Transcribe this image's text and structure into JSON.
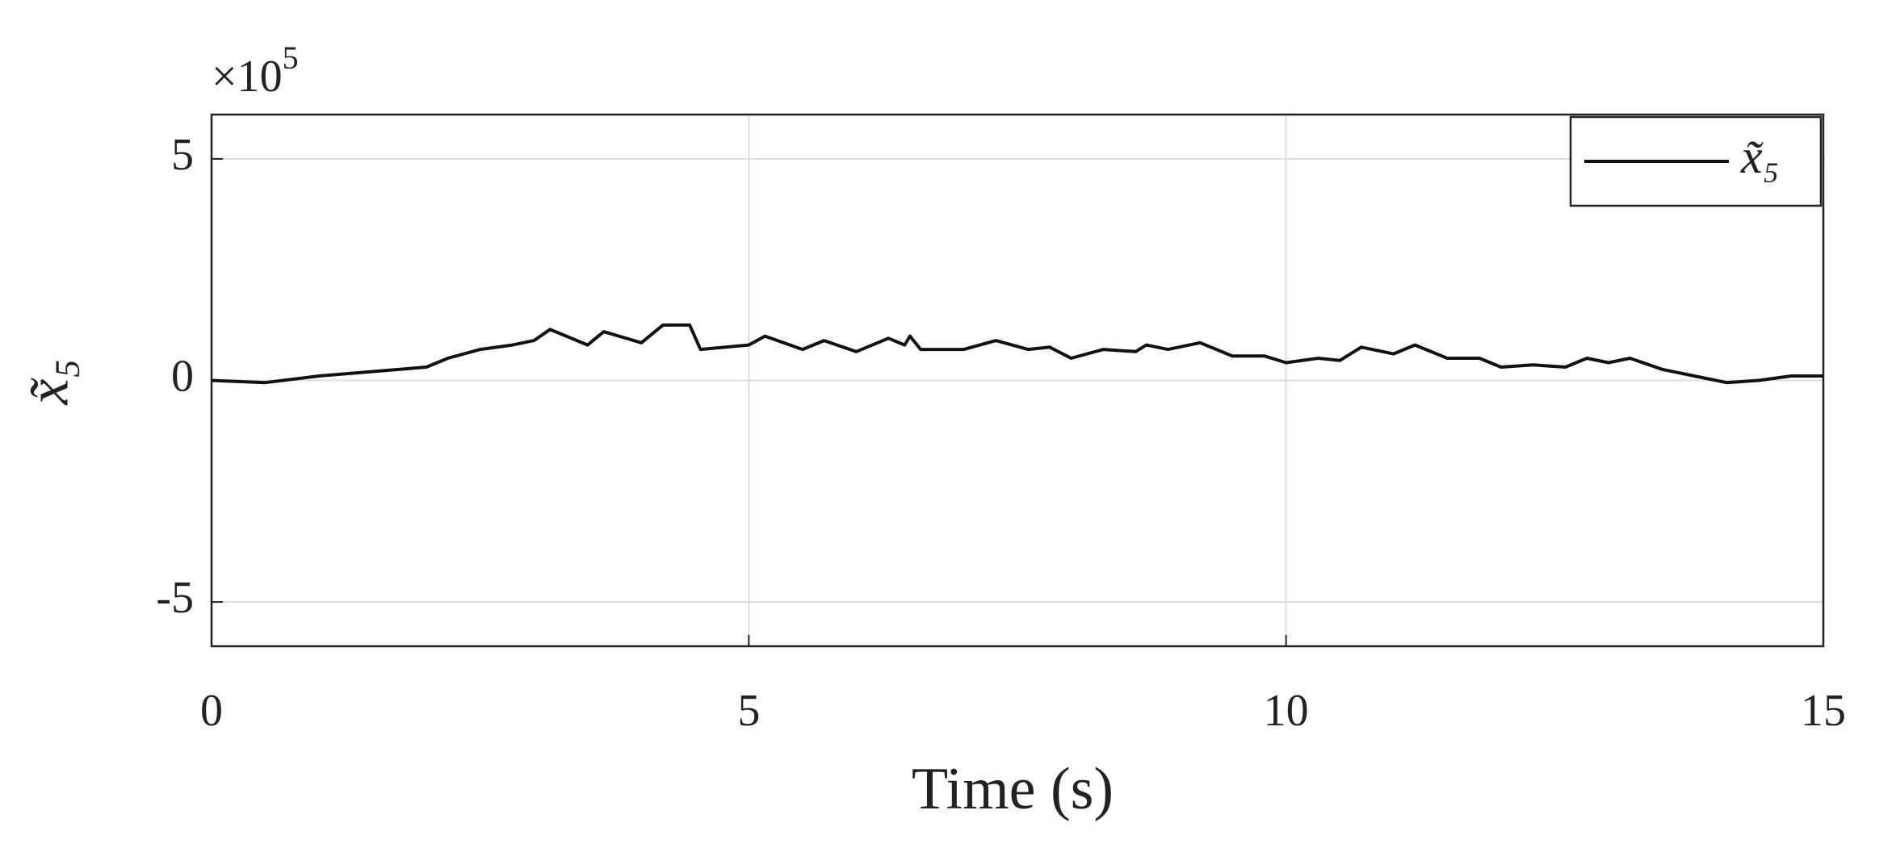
{
  "chart_data": {
    "type": "line",
    "xlabel": "Time (s)",
    "ylabel": "x̃₅",
    "y_multiplier": {
      "base": "×10",
      "exponent": "5"
    },
    "xlim": [
      0,
      15
    ],
    "xticks": [
      0,
      5,
      10,
      15
    ],
    "ylim": [
      -6,
      6
    ],
    "yticks": [
      -5,
      0,
      5
    ],
    "grid": true,
    "legend": "top-right",
    "x": [
      0,
      0.5,
      1,
      1.5,
      2,
      2.2,
      2.5,
      2.8,
      3.0,
      3.15,
      3.5,
      3.65,
      4.0,
      4.2,
      4.45,
      4.55,
      5.0,
      5.15,
      5.5,
      5.7,
      6.0,
      6.3,
      6.45,
      6.5,
      6.6,
      7.0,
      7.3,
      7.6,
      7.8,
      8.0,
      8.3,
      8.6,
      8.7,
      8.9,
      9.2,
      9.5,
      9.8,
      10.0,
      10.3,
      10.5,
      10.7,
      11.0,
      11.2,
      11.5,
      11.8,
      12.0,
      12.3,
      12.6,
      12.8,
      13.0,
      13.2,
      13.5,
      13.8,
      14.1,
      14.4,
      14.7,
      15
    ],
    "series": [
      {
        "name": "x̃₅",
        "color": "#111111",
        "values": [
          0,
          -0.05,
          0.1,
          0.2,
          0.3,
          0.5,
          0.7,
          0.8,
          0.9,
          1.15,
          0.8,
          1.1,
          0.85,
          1.25,
          1.25,
          0.7,
          0.8,
          1.0,
          0.7,
          0.9,
          0.65,
          0.95,
          0.8,
          1.0,
          0.7,
          0.7,
          0.9,
          0.7,
          0.75,
          0.5,
          0.7,
          0.65,
          0.8,
          0.7,
          0.85,
          0.55,
          0.55,
          0.4,
          0.5,
          0.45,
          0.75,
          0.6,
          0.8,
          0.5,
          0.5,
          0.3,
          0.35,
          0.3,
          0.5,
          0.4,
          0.5,
          0.25,
          0.1,
          -0.05,
          0,
          0.1,
          0.1
        ]
      }
    ]
  }
}
